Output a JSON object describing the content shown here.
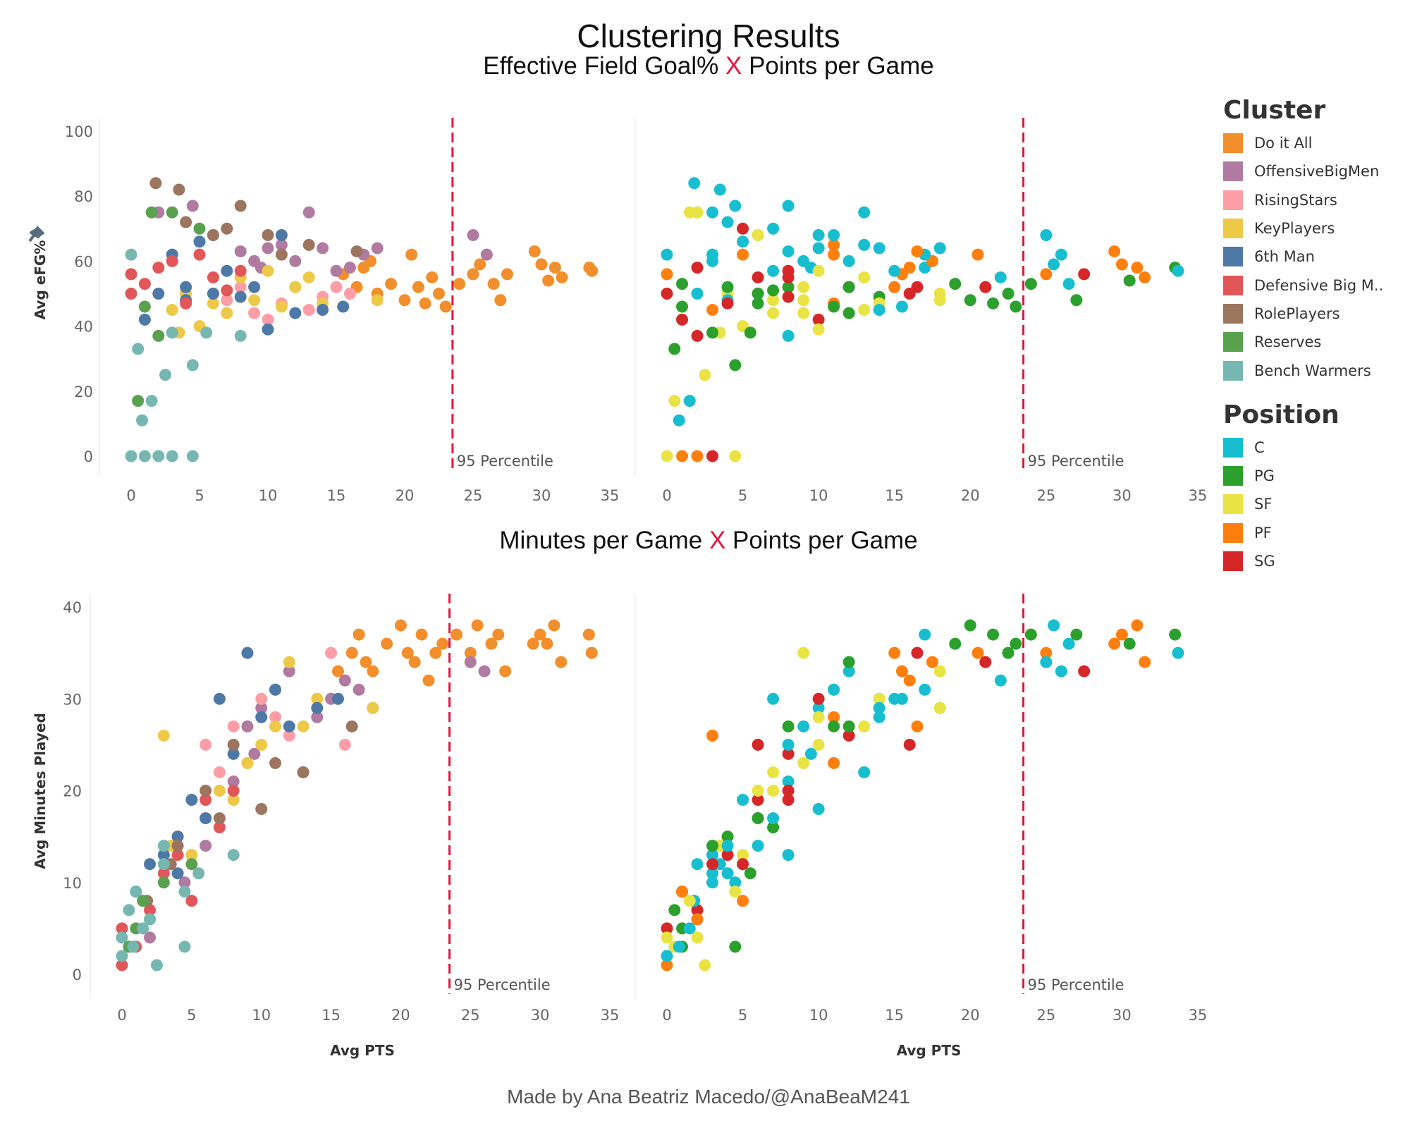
{
  "title": "Clustering Results",
  "subtitle_top": {
    "left": "Effective Field Goal%",
    "x": "X",
    "right": "Points per Game"
  },
  "subtitle_bottom": {
    "left": "Minutes per Game",
    "x": "X",
    "right": "Points per Game"
  },
  "footer": "Made by Ana Beatriz Macedo/@AnaBeaM241",
  "legend": {
    "cluster_title": "Cluster",
    "clusters": [
      {
        "label": "Do it All",
        "color": "#f28e2b"
      },
      {
        "label": "OffensiveBigMen",
        "color": "#b07aa1"
      },
      {
        "label": "RisingStars",
        "color": "#ff9da7"
      },
      {
        "label": "KeyPlayers",
        "color": "#edc948"
      },
      {
        "label": "6th Man",
        "color": "#4e79a7"
      },
      {
        "label": "Defensive Big M..",
        "color": "#e15759"
      },
      {
        "label": "RolePlayers",
        "color": "#9c755f"
      },
      {
        "label": "Reserves",
        "color": "#59a14f"
      },
      {
        "label": "Bench Warmers",
        "color": "#76b7b2"
      }
    ],
    "position_title": "Position",
    "positions": [
      {
        "label": "C",
        "color": "#17becf"
      },
      {
        "label": "PG",
        "color": "#2ca02c"
      },
      {
        "label": "SF",
        "color": "#eae344"
      },
      {
        "label": "PF",
        "color": "#ff7f0e"
      },
      {
        "label": "SG",
        "color": "#d62728"
      }
    ]
  },
  "chart_data": {
    "type": "scatter",
    "reference_line": {
      "x": 23.5,
      "label": "95 Percentile",
      "color": "#e0163c",
      "style": "dashed"
    },
    "x_axis": {
      "label": "Avg PTS",
      "range": [
        0,
        35
      ],
      "ticks": [
        0,
        5,
        10,
        15,
        20,
        25,
        30,
        35
      ]
    },
    "panels_top": {
      "ylabel": "Avg eFG%",
      "range": [
        0,
        100
      ],
      "ticks": [
        0,
        20,
        40,
        60,
        80,
        100
      ],
      "icon": "pin-icon"
    },
    "panels_bottom": {
      "ylabel": "Avg Minutes Played",
      "range": [
        0,
        40
      ],
      "ticks": [
        0,
        10,
        20,
        30,
        40
      ]
    },
    "fields": [
      "Avg PTS",
      "Avg eFG%",
      "Avg Minutes Played",
      "Cluster",
      "Position"
    ],
    "players": [
      [
        15.5,
        56,
        33,
        "Do it All",
        "PF"
      ],
      [
        16.5,
        52,
        35,
        "Do it All",
        "SG"
      ],
      [
        17,
        58,
        37,
        "Do it All",
        "C"
      ],
      [
        17.5,
        60,
        34,
        "Do it All",
        "PF"
      ],
      [
        18,
        50,
        33,
        "Do it All",
        "SF"
      ],
      [
        19,
        53,
        36,
        "Do it All",
        "PG"
      ],
      [
        20,
        48,
        38,
        "Do it All",
        "PG"
      ],
      [
        20.5,
        62,
        35,
        "Do it All",
        "PF"
      ],
      [
        21,
        52,
        34,
        "Do it All",
        "SG"
      ],
      [
        21.5,
        47,
        37,
        "Do it All",
        "PG"
      ],
      [
        22,
        55,
        32,
        "Do it All",
        "C"
      ],
      [
        22.5,
        50,
        35,
        "Do it All",
        "PG"
      ],
      [
        23,
        46,
        36,
        "Do it All",
        "PG"
      ],
      [
        24,
        53,
        37,
        "Do it All",
        "PG"
      ],
      [
        25,
        56,
        35,
        "Do it All",
        "PF"
      ],
      [
        25.5,
        59,
        38,
        "Do it All",
        "C"
      ],
      [
        26.5,
        53,
        36,
        "Do it All",
        "C"
      ],
      [
        27,
        48,
        37,
        "Do it All",
        "PG"
      ],
      [
        27.5,
        56,
        33,
        "Do it All",
        "SG"
      ],
      [
        29.5,
        63,
        36,
        "Do it All",
        "PF"
      ],
      [
        30,
        59,
        37,
        "Do it All",
        "PF"
      ],
      [
        30.5,
        54,
        36,
        "Do it All",
        "PG"
      ],
      [
        31,
        58,
        38,
        "Do it All",
        "PF"
      ],
      [
        31.5,
        55,
        34,
        "Do it All",
        "PF"
      ],
      [
        33.5,
        58,
        37,
        "Do it All",
        "PG"
      ],
      [
        33.7,
        57,
        35,
        "Do it All",
        "C"
      ],
      [
        2,
        75,
        4,
        "OffensiveBigMen",
        "SF"
      ],
      [
        4.5,
        77,
        10,
        "OffensiveBigMen",
        "C"
      ],
      [
        6,
        68,
        14,
        "OffensiveBigMen",
        "C"
      ],
      [
        8,
        63,
        21,
        "OffensiveBigMen",
        "C"
      ],
      [
        9,
        60,
        27,
        "OffensiveBigMen",
        "C"
      ],
      [
        10,
        64,
        29,
        "OffensiveBigMen",
        "C"
      ],
      [
        11,
        65,
        31,
        "OffensiveBigMen",
        "PF"
      ],
      [
        12,
        60,
        33,
        "OffensiveBigMen",
        "C"
      ],
      [
        13,
        75,
        22,
        "OffensiveBigMen",
        "C"
      ],
      [
        14,
        64,
        28,
        "OffensiveBigMen",
        "C"
      ],
      [
        15,
        57,
        30,
        "OffensiveBigMen",
        "C"
      ],
      [
        16,
        58,
        32,
        "OffensiveBigMen",
        "PF"
      ],
      [
        17,
        62,
        31,
        "OffensiveBigMen",
        "C"
      ],
      [
        18,
        64,
        29,
        "OffensiveBigMen",
        "C"
      ],
      [
        25,
        68,
        34,
        "OffensiveBigMen",
        "C"
      ],
      [
        26,
        62,
        33,
        "OffensiveBigMen",
        "C"
      ],
      [
        9.5,
        58,
        24,
        "OffensiveBigMen",
        "C"
      ],
      [
        6,
        50,
        25,
        "RisingStars",
        "SG"
      ],
      [
        7,
        48,
        22,
        "RisingStars",
        "SF"
      ],
      [
        8,
        52,
        27,
        "RisingStars",
        "PG"
      ],
      [
        9,
        44,
        23,
        "RisingStars",
        "SF"
      ],
      [
        10,
        42,
        30,
        "RisingStars",
        "SG"
      ],
      [
        11,
        47,
        28,
        "RisingStars",
        "PF"
      ],
      [
        12,
        52,
        26,
        "RisingStars",
        "SG"
      ],
      [
        13,
        45,
        22,
        "RisingStars",
        "SF"
      ],
      [
        14,
        49,
        30,
        "RisingStars",
        "PG"
      ],
      [
        15,
        52,
        35,
        "RisingStars",
        "PF"
      ],
      [
        16,
        50,
        25,
        "RisingStars",
        "SG"
      ],
      [
        3,
        45,
        26,
        "KeyPlayers",
        "PF"
      ],
      [
        4,
        50,
        15,
        "KeyPlayers",
        "SF"
      ],
      [
        5,
        40,
        13,
        "KeyPlayers",
        "SF"
      ],
      [
        6,
        47,
        17,
        "KeyPlayers",
        "PG"
      ],
      [
        7,
        44,
        20,
        "KeyPlayers",
        "SF"
      ],
      [
        8,
        55,
        19,
        "KeyPlayers",
        "SG"
      ],
      [
        9,
        48,
        23,
        "KeyPlayers",
        "SF"
      ],
      [
        10,
        57,
        25,
        "KeyPlayers",
        "SF"
      ],
      [
        11,
        46,
        27,
        "KeyPlayers",
        "PG"
      ],
      [
        12,
        52,
        34,
        "KeyPlayers",
        "PG"
      ],
      [
        13,
        55,
        27,
        "KeyPlayers",
        "SF"
      ],
      [
        14,
        47,
        30,
        "KeyPlayers",
        "SF"
      ],
      [
        18,
        48,
        29,
        "KeyPlayers",
        "SF"
      ],
      [
        3.5,
        38,
        14,
        "KeyPlayers",
        "SF"
      ],
      [
        1,
        42,
        9,
        "6th Man",
        "SG"
      ],
      [
        2,
        50,
        12,
        "6th Man",
        "C"
      ],
      [
        3,
        62,
        13,
        "6th Man",
        "C"
      ],
      [
        4,
        52,
        15,
        "6th Man",
        "PG"
      ],
      [
        5,
        66,
        19,
        "6th Man",
        "C"
      ],
      [
        6,
        50,
        17,
        "6th Man",
        "PG"
      ],
      [
        7,
        57,
        30,
        "6th Man",
        "C"
      ],
      [
        8,
        49,
        24,
        "6th Man",
        "SG"
      ],
      [
        9,
        52,
        35,
        "6th Man",
        "SF"
      ],
      [
        10,
        39,
        28,
        "6th Man",
        "SF"
      ],
      [
        11,
        68,
        31,
        "6th Man",
        "C"
      ],
      [
        12,
        44,
        27,
        "6th Man",
        "PG"
      ],
      [
        14,
        45,
        29,
        "6th Man",
        "C"
      ],
      [
        15.5,
        46,
        30,
        "6th Man",
        "C"
      ],
      [
        4,
        48,
        11,
        "6th Man",
        "C"
      ],
      [
        0,
        56,
        1,
        "Defensive Big M..",
        "PF"
      ],
      [
        0,
        50,
        5,
        "Defensive Big M..",
        "SG"
      ],
      [
        1,
        53,
        3,
        "Defensive Big M..",
        "PG"
      ],
      [
        2,
        58,
        7,
        "Defensive Big M..",
        "SG"
      ],
      [
        3,
        60,
        11,
        "Defensive Big M..",
        "C"
      ],
      [
        4,
        47,
        13,
        "Defensive Big M..",
        "SG"
      ],
      [
        5,
        62,
        8,
        "Defensive Big M..",
        "PF"
      ],
      [
        6,
        55,
        19,
        "Defensive Big M..",
        "SG"
      ],
      [
        7,
        51,
        16,
        "Defensive Big M..",
        "PG"
      ],
      [
        8,
        57,
        20,
        "Defensive Big M..",
        "SG"
      ],
      [
        1.8,
        84,
        8,
        "RolePlayers",
        "C"
      ],
      [
        3.5,
        82,
        12,
        "RolePlayers",
        "C"
      ],
      [
        4,
        72,
        14,
        "RolePlayers",
        "C"
      ],
      [
        6,
        68,
        20,
        "RolePlayers",
        "SF"
      ],
      [
        7,
        70,
        17,
        "RolePlayers",
        "C"
      ],
      [
        8,
        77,
        25,
        "RolePlayers",
        "C"
      ],
      [
        10,
        68,
        18,
        "RolePlayers",
        "C"
      ],
      [
        11,
        62,
        23,
        "RolePlayers",
        "PF"
      ],
      [
        13,
        65,
        22,
        "RolePlayers",
        "C"
      ],
      [
        16.5,
        63,
        27,
        "RolePlayers",
        "PF"
      ],
      [
        0.5,
        17,
        3,
        "Reserves",
        "SF"
      ],
      [
        1,
        46,
        5,
        "Reserves",
        "PG"
      ],
      [
        1.5,
        75,
        8,
        "Reserves",
        "SF"
      ],
      [
        2,
        37,
        6,
        "Reserves",
        "SG"
      ],
      [
        3,
        75,
        10,
        "Reserves",
        "C"
      ],
      [
        5,
        70,
        12,
        "Reserves",
        "SG"
      ],
      [
        0,
        62,
        2,
        "Bench Warmers",
        "C"
      ],
      [
        0,
        0,
        4,
        "Bench Warmers",
        "SF"
      ],
      [
        0.5,
        33,
        7,
        "Bench Warmers",
        "PG"
      ],
      [
        0.8,
        11,
        3,
        "Bench Warmers",
        "C"
      ],
      [
        1,
        0,
        9,
        "Bench Warmers",
        "PF"
      ],
      [
        1.5,
        17,
        5,
        "Bench Warmers",
        "C"
      ],
      [
        2,
        0,
        6,
        "Bench Warmers",
        "PF"
      ],
      [
        2.5,
        25,
        1,
        "Bench Warmers",
        "SF"
      ],
      [
        3,
        0,
        12,
        "Bench Warmers",
        "SG"
      ],
      [
        3,
        38,
        14,
        "Bench Warmers",
        "PG"
      ],
      [
        4.5,
        28,
        3,
        "Bench Warmers",
        "PG"
      ],
      [
        4.5,
        0,
        9,
        "Bench Warmers",
        "SF"
      ],
      [
        5.5,
        38,
        11,
        "Bench Warmers",
        "PG"
      ],
      [
        8,
        37,
        13,
        "Bench Warmers",
        "C"
      ]
    ]
  }
}
